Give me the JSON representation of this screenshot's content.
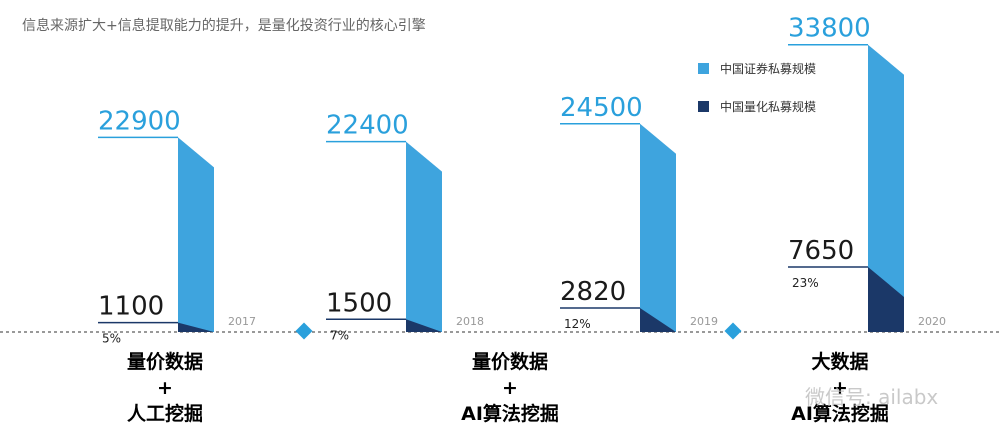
{
  "chart_data": {
    "type": "bar",
    "title": "信息来源扩大+信息提取能力的提升，是量化投资行业的核心引擎",
    "categories": [
      "2017",
      "2018",
      "2019",
      "2020"
    ],
    "series": [
      {
        "name": "中国证券私募规模",
        "color": "#3ea4de",
        "values": [
          22900,
          22400,
          24500,
          33800
        ]
      },
      {
        "name": "中国量化私募规模",
        "color": "#1b3868",
        "values": [
          1100,
          1500,
          2820,
          7650
        ]
      }
    ],
    "shares": {
      "values": [
        5,
        7,
        12,
        23
      ],
      "value_labels": [
        "5%",
        "7%",
        "12%",
        "23%"
      ]
    },
    "ylim": [
      0,
      36000
    ],
    "stages": [
      [
        "量价数据",
        "+",
        "人工挖掘"
      ],
      [
        "量价数据",
        "+",
        "AI算法挖掘"
      ],
      [
        "大数据",
        "+",
        "AI算法挖掘"
      ]
    ],
    "watermark": "微信号: ailabx"
  }
}
